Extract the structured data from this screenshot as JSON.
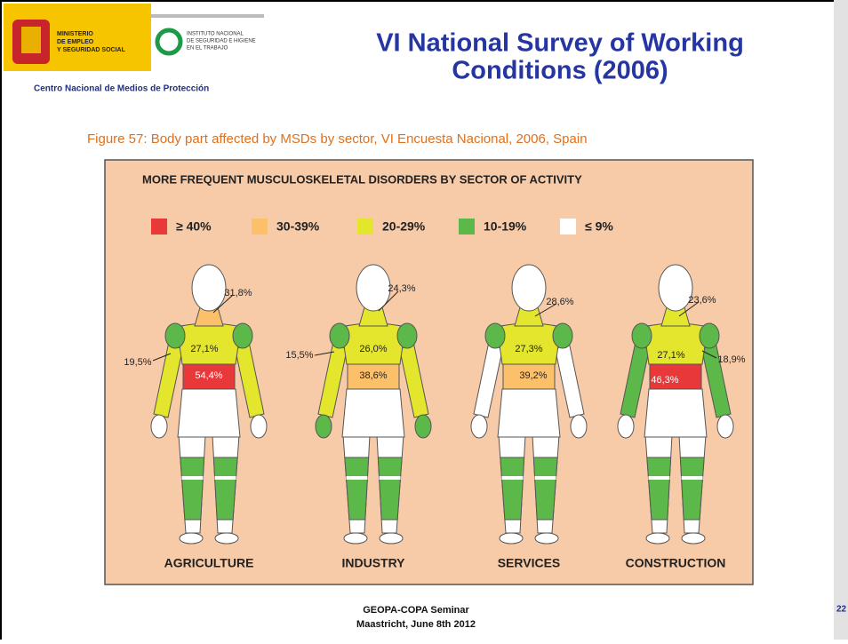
{
  "header": {
    "logo_ministry": [
      "MINISTERIO",
      "DE EMPLEO",
      "Y SEGURIDAD SOCIAL"
    ],
    "logo_institute": [
      "INSTITUTO NACIONAL",
      "DE SEGURIDAD E HIGIENE",
      "EN EL TRABAJO"
    ],
    "center": "Centro Nacional de Medios de Protección",
    "title": [
      "VI National Survey of Working",
      "Conditions (2006)"
    ]
  },
  "figure": {
    "caption": "Figure 57: Body part affected by MSDs by sector, VI Encuesta Nacional, 2006, Spain",
    "heading": "MORE FREQUENT MUSCULOSKELETAL DISORDERS BY SECTOR OF ACTIVITY",
    "legend": [
      {
        "label": "≥ 40%",
        "color": "#e8383a"
      },
      {
        "label": "30-39%",
        "color": "#fcc06a"
      },
      {
        "label": "20-29%",
        "color": "#e3e62c"
      },
      {
        "label": "10-19%",
        "color": "#5db84a"
      },
      {
        "label": "≤ 9%",
        "color": "#ffffff"
      }
    ],
    "sectors": [
      {
        "name": "AGRICULTURE",
        "labels": [
          "31,8%",
          "27,1%",
          "54,4%",
          "19,5%"
        ]
      },
      {
        "name": "INDUSTRY",
        "labels": [
          "24,3%",
          "26,0%",
          "38,6%",
          "15,5%"
        ]
      },
      {
        "name": "SERVICES",
        "labels": [
          "28,6%",
          "27,3%",
          "39,2%"
        ]
      },
      {
        "name": "CONSTRUCTION",
        "labels": [
          "23,6%",
          "27,1%",
          "46,3%",
          "18,9%"
        ]
      }
    ]
  },
  "footer": {
    "lines": [
      "GEOPA-COPA Seminar",
      "Maastricht, June 8th 2012"
    ],
    "page": "22"
  }
}
